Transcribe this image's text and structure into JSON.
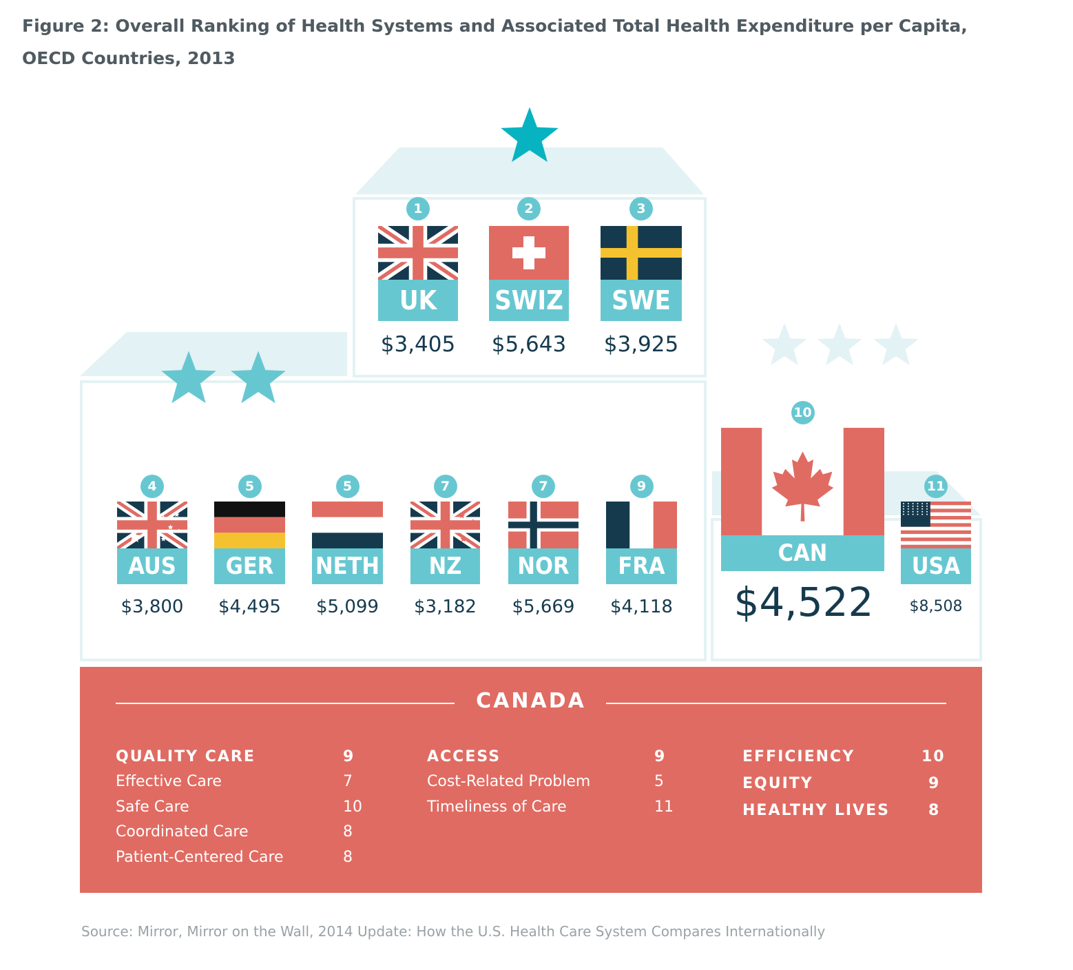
{
  "title": {
    "line1": "Figure 2: Overall Ranking of Health Systems and Associated Total Health Expenditure per Capita,",
    "line2": "OECD Countries, 2013"
  },
  "tiers": {
    "top": {
      "stars": 1
    },
    "middle": {
      "stars": 2
    },
    "bottom": {
      "stars": 3
    }
  },
  "countries": [
    {
      "code": "UK",
      "rank": "1",
      "spend": "$3,405",
      "flag": "uk-flag"
    },
    {
      "code": "SWIZ",
      "rank": "2",
      "spend": "$5,643",
      "flag": "switzerland-flag"
    },
    {
      "code": "SWE",
      "rank": "3",
      "spend": "$3,925",
      "flag": "sweden-flag"
    },
    {
      "code": "AUS",
      "rank": "4",
      "spend": "$3,800",
      "flag": "australia-flag"
    },
    {
      "code": "GER",
      "rank": "5",
      "spend": "$4,495",
      "flag": "germany-flag"
    },
    {
      "code": "NETH",
      "rank": "5",
      "spend": "$5,099",
      "flag": "netherlands-flag"
    },
    {
      "code": "NZ",
      "rank": "7",
      "spend": "$3,182",
      "flag": "new-zealand-flag"
    },
    {
      "code": "NOR",
      "rank": "7",
      "spend": "$5,669",
      "flag": "norway-flag"
    },
    {
      "code": "FRA",
      "rank": "9",
      "spend": "$4,118",
      "flag": "france-flag"
    },
    {
      "code": "CAN",
      "rank": "10",
      "spend": "$4,522",
      "flag": "canada-flag"
    },
    {
      "code": "USA",
      "rank": "11",
      "spend": "$8,508",
      "flag": "usa-flag"
    }
  ],
  "canada": {
    "heading": "CANADA",
    "quality": {
      "label": "QUALITY CARE",
      "rank": "9",
      "items": [
        {
          "label": "Effective Care",
          "rank": "7"
        },
        {
          "label": "Safe Care",
          "rank": "10"
        },
        {
          "label": "Coordinated Care",
          "rank": "8"
        },
        {
          "label": "Patient-Centered Care",
          "rank": "8"
        }
      ]
    },
    "access": {
      "label": "ACCESS",
      "rank": "9",
      "items": [
        {
          "label": "Cost-Related Problem",
          "rank": "5"
        },
        {
          "label": "Timeliness of Care",
          "rank": "11"
        }
      ]
    },
    "other": [
      {
        "label": "EFFICIENCY",
        "rank": "10"
      },
      {
        "label": "EQUITY",
        "rank": "9"
      },
      {
        "label": "HEALTHY LIVES",
        "rank": "8"
      }
    ]
  },
  "colors": {
    "teal": "#67c7d1",
    "dark_teal": "#08b3c1",
    "light_teal": "#e3f2f4",
    "red": "#e06b62",
    "navy": "#163a4d",
    "gold": "#f5c22f"
  },
  "source": "Source: Mirror, Mirror on the Wall, 2014 Update: How the U.S. Health Care System Compares Internationally"
}
